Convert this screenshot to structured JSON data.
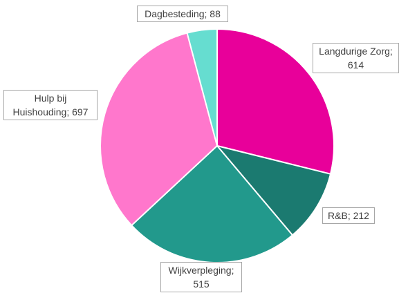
{
  "chart_data": {
    "type": "pie",
    "categories": [
      "Langdurige Zorg",
      "R&B",
      "Wijkverpleging",
      "Hulp bij Huishouding",
      "Dagbesteding"
    ],
    "values": [
      614,
      212,
      515,
      697,
      88
    ],
    "value_labels": [
      "Langdurige Zorg; 614",
      "R&B; 212",
      "Wijkverpleging; 515",
      "Hulp bij Huishouding; 697",
      "Dagbesteding; 88"
    ],
    "colors": [
      "#e8009a",
      "#1b7a70",
      "#22998c",
      "#ff77cc",
      "#66ddd0"
    ]
  }
}
